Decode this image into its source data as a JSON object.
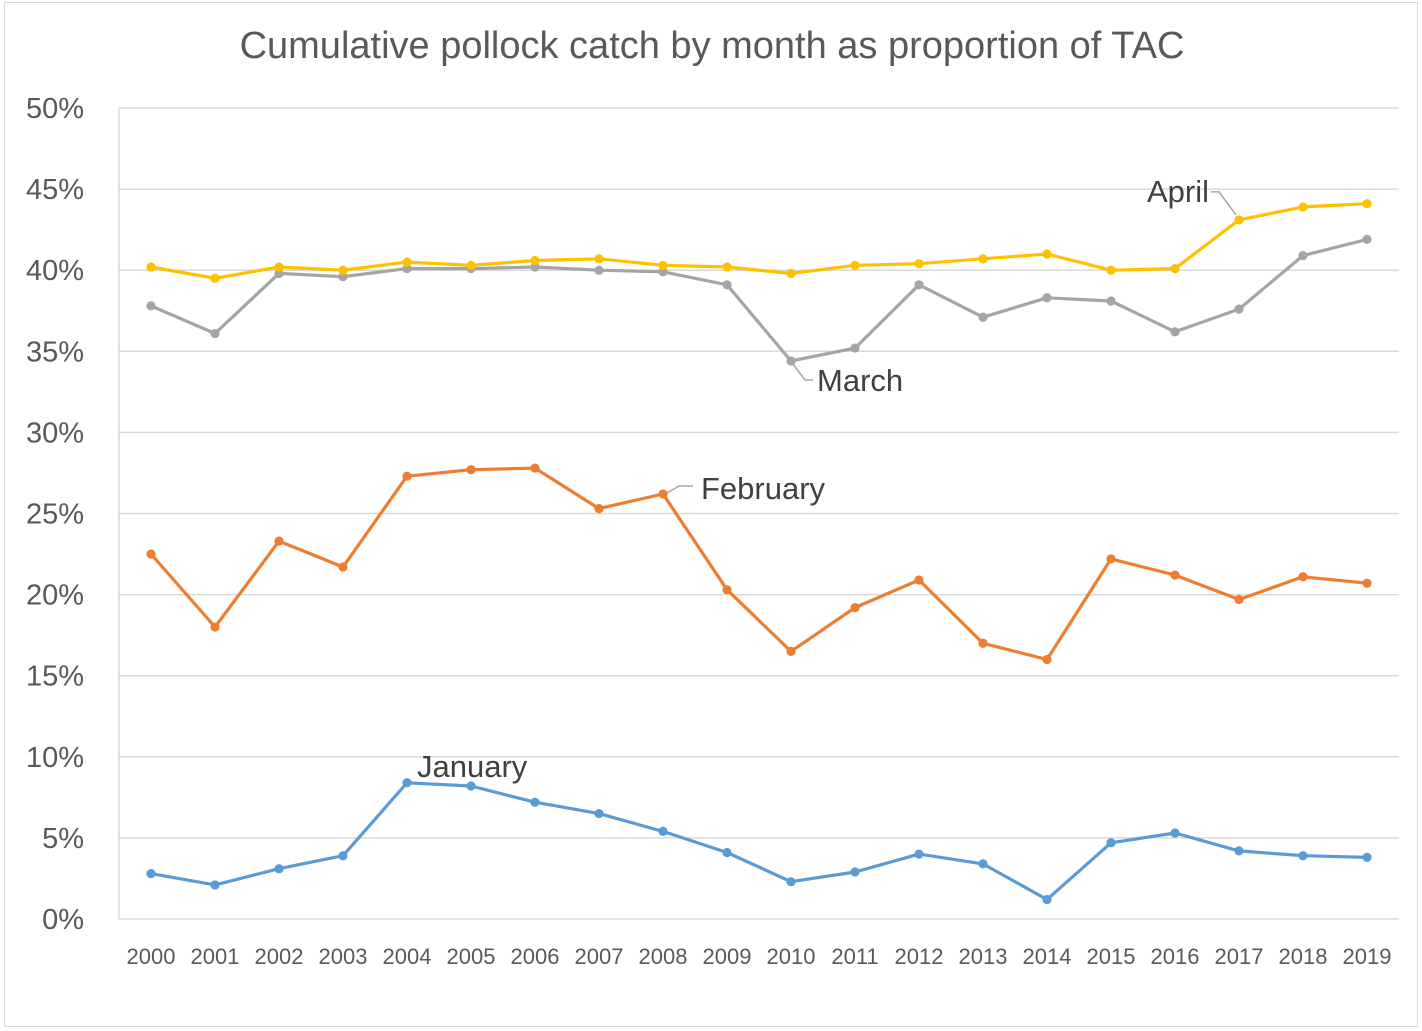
{
  "chart_data": {
    "type": "line",
    "title": "Cumulative pollock catch by month as proportion of TAC",
    "xlabel": "",
    "ylabel": "",
    "ylim": [
      0,
      50
    ],
    "y_tick_labels": [
      "0%",
      "5%",
      "10%",
      "15%",
      "20%",
      "25%",
      "30%",
      "35%",
      "40%",
      "45%",
      "50%"
    ],
    "grid": "horizontal",
    "legend": "none (series labeled inline)",
    "categories": [
      "2000",
      "2001",
      "2002",
      "2003",
      "2004",
      "2005",
      "2006",
      "2007",
      "2008",
      "2009",
      "2010",
      "2011",
      "2012",
      "2013",
      "2014",
      "2015",
      "2016",
      "2017",
      "2018",
      "2019"
    ],
    "series": [
      {
        "name": "January",
        "color": "#5b9bd5",
        "values": [
          2.8,
          2.1,
          3.1,
          3.9,
          8.4,
          8.2,
          7.2,
          6.5,
          5.4,
          4.1,
          2.3,
          2.9,
          4.0,
          3.4,
          1.2,
          4.7,
          5.3,
          4.2,
          3.9,
          3.8
        ]
      },
      {
        "name": "February",
        "color": "#ed7d31",
        "values": [
          22.5,
          18.0,
          23.3,
          21.7,
          27.3,
          27.7,
          27.8,
          25.3,
          26.2,
          20.3,
          16.5,
          19.2,
          20.9,
          17.0,
          16.0,
          22.2,
          21.2,
          19.7,
          21.1,
          20.7
        ]
      },
      {
        "name": "March",
        "color": "#a5a5a5",
        "values": [
          37.8,
          36.1,
          39.8,
          39.6,
          40.1,
          40.1,
          40.2,
          40.0,
          39.9,
          39.1,
          34.4,
          35.2,
          39.1,
          37.1,
          38.3,
          38.1,
          36.2,
          37.6,
          40.9,
          41.9
        ]
      },
      {
        "name": "April",
        "color": "#ffc000",
        "values": [
          40.2,
          39.5,
          40.2,
          40.0,
          40.5,
          40.3,
          40.6,
          40.7,
          40.3,
          40.2,
          39.8,
          40.3,
          40.4,
          40.7,
          41.0,
          40.0,
          40.1,
          43.1,
          43.9,
          44.1
        ]
      }
    ]
  }
}
